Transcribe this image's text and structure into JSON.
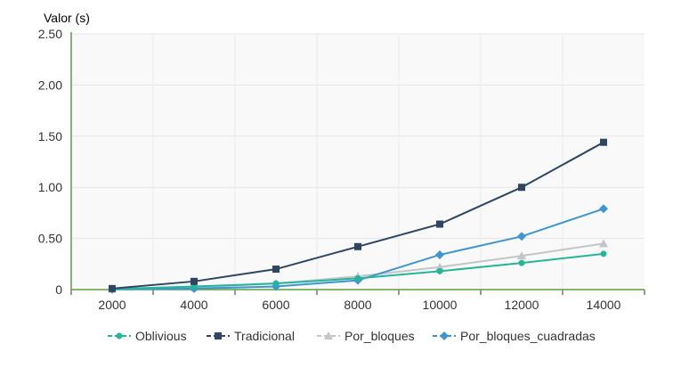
{
  "chart_data": {
    "type": "line",
    "title": "",
    "ylabel": "Valor (s)",
    "xlabel": "",
    "categories": [
      "2000",
      "4000",
      "6000",
      "8000",
      "10000",
      "12000",
      "14000"
    ],
    "x": [
      2000,
      4000,
      6000,
      8000,
      10000,
      12000,
      14000
    ],
    "ylim": [
      0,
      2.5
    ],
    "yticks": [
      0,
      0.5,
      1.0,
      1.5,
      2.0,
      2.5
    ],
    "ytick_labels": [
      "0",
      "0.50",
      "1.00",
      "1.50",
      "2.00",
      "2.50"
    ],
    "grid": true,
    "legend_position": "bottom",
    "series": [
      {
        "name": "Oblivious",
        "color": "#26b598",
        "marker": "circle",
        "values": [
          0.005,
          0.03,
          0.06,
          0.11,
          0.18,
          0.26,
          0.35
        ]
      },
      {
        "name": "Tradicional",
        "color": "#2e4661",
        "marker": "square",
        "values": [
          0.01,
          0.08,
          0.2,
          0.42,
          0.64,
          1.0,
          1.44
        ]
      },
      {
        "name": "Por_bloques",
        "color": "#c3c6c9",
        "marker": "triangle",
        "values": [
          0.005,
          0.02,
          0.06,
          0.13,
          0.22,
          0.33,
          0.45
        ]
      },
      {
        "name": "Por_bloques_cuadradas",
        "color": "#3e95d2",
        "marker": "diamond",
        "values": [
          0.002,
          0.01,
          0.03,
          0.09,
          0.34,
          0.52,
          0.79
        ]
      }
    ],
    "axis_color": "#5aa046"
  }
}
